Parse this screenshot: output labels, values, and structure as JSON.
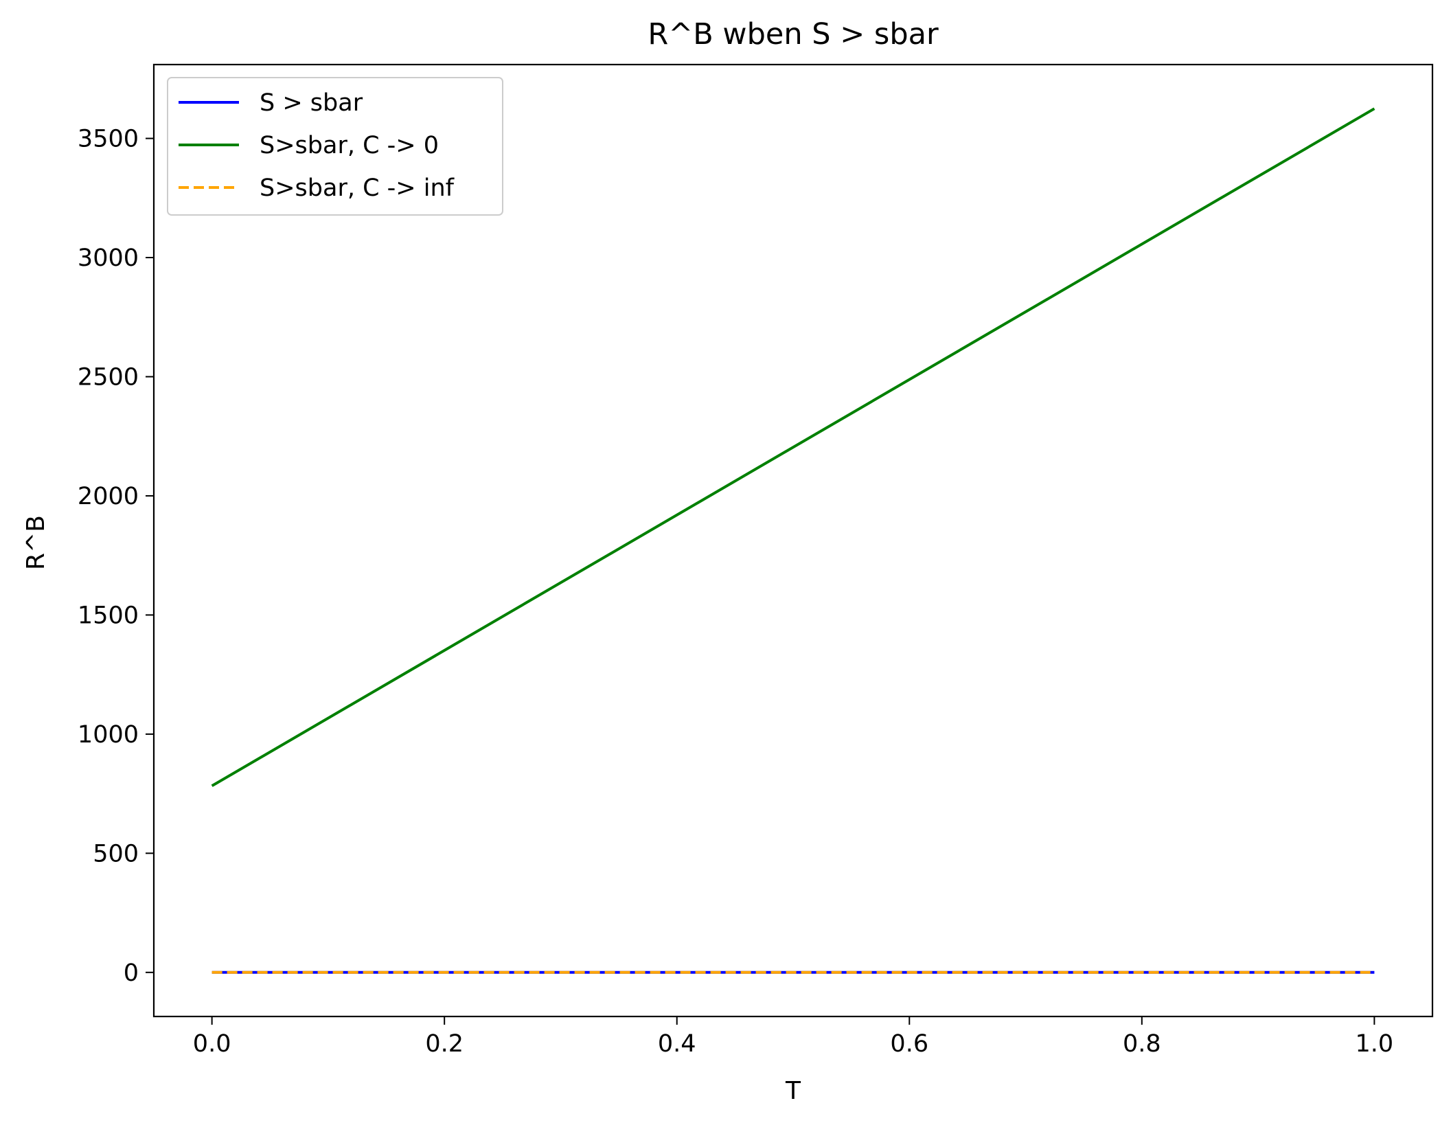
{
  "chart_data": {
    "type": "line",
    "title": "R^B wben S > sbar",
    "xlabel": "T",
    "ylabel": "R^B",
    "xlim": [
      -0.05,
      1.05
    ],
    "ylim": [
      -185,
      3810
    ],
    "xticks": [
      0.0,
      0.2,
      0.4,
      0.6,
      0.8,
      1.0
    ],
    "xtick_labels": [
      "0.0",
      "0.2",
      "0.4",
      "0.6",
      "0.8",
      "1.0"
    ],
    "yticks": [
      0,
      500,
      1000,
      1500,
      2000,
      2500,
      3000,
      3500
    ],
    "ytick_labels": [
      "0",
      "500",
      "1000",
      "1500",
      "2000",
      "2500",
      "3000",
      "3500"
    ],
    "grid": false,
    "legend_position": "top-left",
    "series": [
      {
        "name": "S > sbar",
        "color": "#0000ff",
        "style": "solid",
        "x": [
          0.0,
          1.0
        ],
        "y": [
          0,
          0
        ]
      },
      {
        "name": "S>sbar, C -> 0",
        "color": "#008000",
        "style": "solid",
        "x": [
          0.0,
          1.0
        ],
        "y": [
          783,
          3625
        ]
      },
      {
        "name": "S>sbar, C -> inf",
        "color": "#ffa500",
        "style": "dashed",
        "x": [
          0.0,
          1.0
        ],
        "y": [
          0,
          0
        ]
      }
    ]
  }
}
